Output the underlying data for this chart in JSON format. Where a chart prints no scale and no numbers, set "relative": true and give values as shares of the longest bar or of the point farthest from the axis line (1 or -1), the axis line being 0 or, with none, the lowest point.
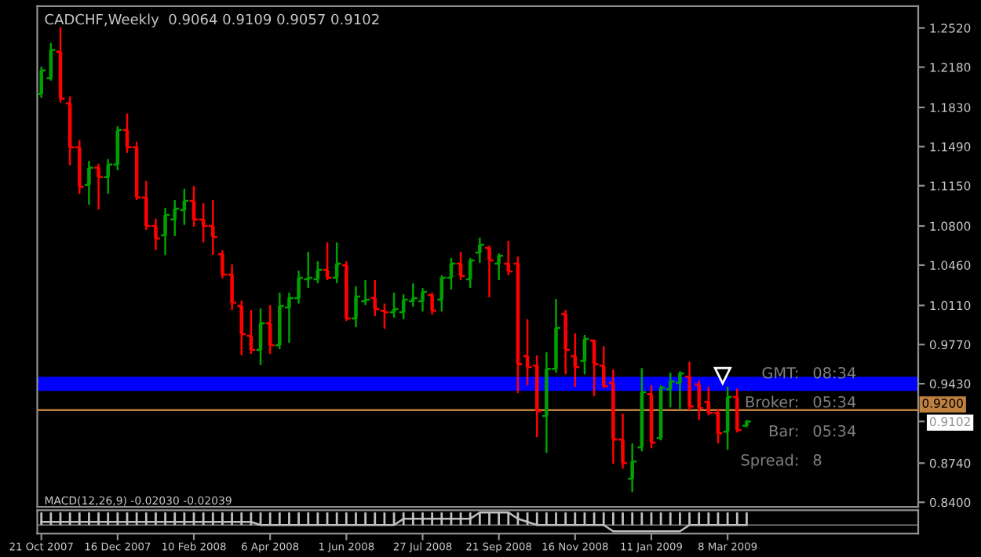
{
  "chart_data": [
    {
      "type": "candlestick",
      "title": "CADCHF,Weekly  0.9064 0.9109 0.9057 0.9102",
      "x": [
        "2007-10-21",
        "2007-10-28",
        "2007-11-04",
        "2007-11-11",
        "2007-11-18",
        "2007-11-25",
        "2007-12-02",
        "2007-12-09",
        "2007-12-16",
        "2007-12-23",
        "2007-12-30",
        "2008-01-06",
        "2008-01-13",
        "2008-01-20",
        "2008-01-27",
        "2008-02-03",
        "2008-02-10",
        "2008-02-17",
        "2008-02-24",
        "2008-03-02",
        "2008-03-09",
        "2008-03-16",
        "2008-03-23",
        "2008-03-30",
        "2008-04-06",
        "2008-04-13",
        "2008-04-20",
        "2008-04-27",
        "2008-05-04",
        "2008-05-11",
        "2008-05-18",
        "2008-05-25",
        "2008-06-01",
        "2008-06-08",
        "2008-06-15",
        "2008-06-22",
        "2008-06-29",
        "2008-07-06",
        "2008-07-13",
        "2008-07-20",
        "2008-07-27",
        "2008-08-03",
        "2008-08-10",
        "2008-08-17",
        "2008-08-24",
        "2008-08-31",
        "2008-09-07",
        "2008-09-14",
        "2008-09-21",
        "2008-09-28",
        "2008-10-05",
        "2008-10-12",
        "2008-10-19",
        "2008-10-26",
        "2008-11-02",
        "2008-11-09",
        "2008-11-16",
        "2008-11-23",
        "2008-11-30",
        "2008-12-07",
        "2008-12-14",
        "2008-12-21",
        "2008-12-28",
        "2009-01-04",
        "2009-01-11",
        "2009-01-18",
        "2009-01-25",
        "2009-02-01",
        "2009-02-08",
        "2009-02-15",
        "2009-02-22",
        "2009-03-01",
        "2009-03-08",
        "2009-03-15",
        "2009-03-22"
      ],
      "ohlc": [
        [
          1.1947,
          1.2179,
          1.192,
          1.2152
        ],
        [
          1.2083,
          1.2384,
          1.207,
          1.2329
        ],
        [
          1.2315,
          1.252,
          1.1879,
          1.1906
        ],
        [
          1.1865,
          1.192,
          1.1333,
          1.1483
        ],
        [
          1.1483,
          1.1538,
          1.1087,
          1.1142
        ],
        [
          1.1156,
          1.136,
          1.0992,
          1.1306
        ],
        [
          1.1306,
          1.1333,
          1.0951,
          1.1224
        ],
        [
          1.1224,
          1.1374,
          1.1087,
          1.1333
        ],
        [
          1.1333,
          1.166,
          1.1292,
          1.1633
        ],
        [
          1.1633,
          1.177,
          1.1442,
          1.1483
        ],
        [
          1.1483,
          1.1524,
          1.1033,
          1.1047
        ],
        [
          1.1047,
          1.1183,
          1.0774,
          1.0801
        ],
        [
          1.0801,
          1.0856,
          1.0596,
          1.0692
        ],
        [
          1.0719,
          1.0951,
          1.0555,
          1.0896
        ],
        [
          1.0856,
          1.1019,
          1.0719,
          1.0951
        ],
        [
          1.0937,
          1.1115,
          1.0815,
          1.1019
        ],
        [
          1.1019,
          1.1142,
          1.0801,
          1.0856
        ],
        [
          1.0856,
          1.0992,
          1.0665,
          1.0801
        ],
        [
          1.0801,
          1.1019,
          1.0555,
          1.0705
        ],
        [
          1.0555,
          1.0583,
          1.0351,
          1.0378
        ],
        [
          1.0378,
          1.046,
          1.0078,
          1.0132
        ],
        [
          1.0105,
          1.0146,
          0.9682,
          0.986
        ],
        [
          0.9846,
          1.0064,
          0.9696,
          0.9723
        ],
        [
          0.9723,
          1.0078,
          0.96,
          0.9955
        ],
        [
          0.9955,
          1.0105,
          0.9696,
          0.9764
        ],
        [
          0.9764,
          1.0214,
          0.9737,
          1.0105
        ],
        [
          1.0092,
          1.0214,
          0.9791,
          1.0173
        ],
        [
          1.0173,
          1.0405,
          1.0132,
          1.0351
        ],
        [
          1.0337,
          1.0569,
          1.0269,
          1.0351
        ],
        [
          1.0337,
          1.0487,
          1.031,
          1.0419
        ],
        [
          1.0419,
          1.0651,
          1.0337,
          1.0351
        ],
        [
          1.0351,
          1.0651,
          1.031,
          1.0474
        ],
        [
          1.046,
          1.0487,
          0.9982,
          0.9996
        ],
        [
          0.9996,
          1.0269,
          0.9928,
          1.0187
        ],
        [
          1.0146,
          1.0323,
          1.0119,
          1.016
        ],
        [
          1.0173,
          1.0323,
          1.0023,
          1.0078
        ],
        [
          1.0064,
          1.0119,
          0.9914,
          1.0051
        ],
        [
          1.0051,
          1.0214,
          1.001,
          1.0078
        ],
        [
          1.0051,
          1.0201,
          0.9996,
          1.016
        ],
        [
          1.0146,
          1.0296,
          1.0105,
          1.0173
        ],
        [
          1.0146,
          1.0255,
          1.0064,
          1.0228
        ],
        [
          1.0201,
          1.0214,
          1.0037,
          1.0064
        ],
        [
          1.016,
          1.0364,
          1.0064,
          1.0351
        ],
        [
          1.0351,
          1.0514,
          1.0255,
          1.0474
        ],
        [
          1.0474,
          1.0569,
          1.0337,
          1.0364
        ],
        [
          1.0337,
          1.0514,
          1.0269,
          1.0501
        ],
        [
          1.0569,
          1.0692,
          1.0487,
          1.0637
        ],
        [
          1.061,
          1.0624,
          1.0187,
          1.0501
        ],
        [
          1.0474,
          1.0555,
          1.0337,
          1.0542
        ],
        [
          1.0474,
          1.0665,
          1.0378,
          1.0405
        ],
        [
          1.0474,
          1.0528,
          0.9355,
          0.96
        ],
        [
          0.9669,
          0.9982,
          0.9423,
          0.9573
        ],
        [
          0.9587,
          0.9669,
          0.8973,
          0.9191
        ],
        [
          0.915,
          0.9696,
          0.8836,
          0.9559
        ],
        [
          0.9559,
          1.016,
          0.9532,
          0.9914
        ],
        [
          1.0037,
          1.0064,
          0.9519,
          0.9723
        ],
        [
          0.9669,
          0.986,
          0.9409,
          0.9573
        ],
        [
          0.9628,
          0.9846,
          0.9519,
          0.9819
        ],
        [
          0.9805,
          0.9805,
          0.9328,
          0.96
        ],
        [
          0.9587,
          0.975,
          0.9396,
          0.9409
        ],
        [
          0.9437,
          0.9546,
          0.8741,
          0.8945
        ],
        [
          0.8945,
          0.9164,
          0.87,
          0.8741
        ],
        [
          0.8604,
          0.8905,
          0.8495,
          0.8755
        ],
        [
          0.8877,
          0.9559,
          0.885,
          0.9355
        ],
        [
          0.9341,
          0.9409,
          0.8877,
          0.8918
        ],
        [
          0.8959,
          0.9409,
          0.8945,
          0.9396
        ],
        [
          0.9382,
          0.9519,
          0.9232,
          0.945
        ],
        [
          0.9437,
          0.9532,
          0.9218,
          0.9519
        ],
        [
          0.9491,
          0.9614,
          0.9205,
          0.9232
        ],
        [
          0.9423,
          0.945,
          0.9123,
          0.9218
        ],
        [
          0.9273,
          0.9396,
          0.9164,
          0.9177
        ],
        [
          0.9177,
          0.9205,
          0.8918,
          0.9
        ],
        [
          0.9014,
          0.9396,
          0.8864,
          0.9314
        ],
        [
          0.9314,
          0.9382,
          0.9014,
          0.9027
        ],
        [
          0.9064,
          0.9109,
          0.9057,
          0.9102
        ]
      ],
      "colors": [
        "#00a000",
        "#00a000",
        "#ff0000",
        "#ff0000",
        "#ff0000",
        "#00a000",
        "#ff0000",
        "#00a000",
        "#00a000",
        "#ff0000",
        "#ff0000",
        "#ff0000",
        "#ff0000",
        "#00a000",
        "#00a000",
        "#00a000",
        "#ff0000",
        "#ff0000",
        "#ff0000",
        "#ff0000",
        "#ff0000",
        "#ff0000",
        "#ff0000",
        "#00a000",
        "#ff0000",
        "#00a000",
        "#00a000",
        "#00a000",
        "#00a000",
        "#00a000",
        "#ff0000",
        "#00a000",
        "#ff0000",
        "#00a000",
        "#00a000",
        "#ff0000",
        "#ff0000",
        "#00a000",
        "#00a000",
        "#00a000",
        "#00a000",
        "#ff0000",
        "#00a000",
        "#00a000",
        "#ff0000",
        "#00a000",
        "#00a000",
        "#ff0000",
        "#00a000",
        "#ff0000",
        "#ff0000",
        "#ff0000",
        "#ff0000",
        "#00a000",
        "#00a000",
        "#ff0000",
        "#ff0000",
        "#00a000",
        "#ff0000",
        "#ff0000",
        "#ff0000",
        "#ff0000",
        "#00a000",
        "#00a000",
        "#ff0000",
        "#00a000",
        "#00a000",
        "#00a000",
        "#ff0000",
        "#ff0000",
        "#ff0000",
        "#ff0000",
        "#00a000",
        "#ff0000",
        "#00a000"
      ],
      "xlim": [
        "2007-10-18",
        "2009-07-26"
      ],
      "ylim": [
        0.836,
        1.271
      ],
      "yticks": [
        {
          "value": 1.252,
          "label": "1.2520"
        },
        {
          "value": 1.218,
          "label": "1.2180"
        },
        {
          "value": 1.183,
          "label": "1.1830"
        },
        {
          "value": 1.149,
          "label": "1.1490"
        },
        {
          "value": 1.115,
          "label": "1.1150"
        },
        {
          "value": 1.08,
          "label": "1.0800"
        },
        {
          "value": 1.046,
          "label": "1.0460"
        },
        {
          "value": 1.011,
          "label": "1.0110"
        },
        {
          "value": 0.977,
          "label": "0.9770"
        },
        {
          "value": 0.943,
          "label": "0.9430"
        },
        {
          "value": 0.9102,
          "label": "0.9102"
        },
        {
          "value": 0.874,
          "label": "0.8740"
        },
        {
          "value": 0.84,
          "label": "0.8400"
        }
      ],
      "tick_labels": "y",
      "ref_lines": [
        {
          "axis": "y",
          "value": 0.92,
          "label": "0.9200",
          "color": "#c08040"
        }
      ],
      "bands": [
        {
          "axis": "y",
          "from": 0.9368,
          "to": 0.9491,
          "color": "#0000ff"
        }
      ],
      "annotations": [
        "GMT: 08:34",
        "Broker: 05:34",
        "Bar: 05:34",
        "Spread: 8"
      ]
    },
    {
      "type": "bar",
      "title": "MACD(12,26,9) -0.02030 -0.02039",
      "relative": true,
      "x": [
        "2007-10-21",
        "2007-10-28",
        "2007-11-04",
        "2007-11-11",
        "2007-11-18",
        "2007-11-25",
        "2007-12-02",
        "2007-12-09",
        "2007-12-16",
        "2007-12-23",
        "2007-12-30",
        "2008-01-06",
        "2008-01-13",
        "2008-01-20",
        "2008-01-27",
        "2008-02-03",
        "2008-02-10",
        "2008-02-17",
        "2008-02-24",
        "2008-03-02",
        "2008-03-09",
        "2008-03-16",
        "2008-03-23",
        "2008-03-30",
        "2008-04-06",
        "2008-04-13",
        "2008-04-20",
        "2008-04-27",
        "2008-05-04",
        "2008-05-11",
        "2008-05-18",
        "2008-05-25",
        "2008-06-01",
        "2008-06-08",
        "2008-06-15",
        "2008-06-22",
        "2008-06-29",
        "2008-07-06",
        "2008-07-13",
        "2008-07-20",
        "2008-07-27",
        "2008-08-03",
        "2008-08-10",
        "2008-08-17",
        "2008-08-24",
        "2008-08-31",
        "2008-09-07",
        "2008-09-14",
        "2008-09-21",
        "2008-09-28",
        "2008-10-05",
        "2008-10-12",
        "2008-10-19",
        "2008-10-26",
        "2008-11-02",
        "2008-11-09",
        "2008-11-16",
        "2008-11-23",
        "2008-11-30",
        "2008-12-07",
        "2008-12-14",
        "2008-12-21",
        "2008-12-28",
        "2009-01-04",
        "2009-01-11",
        "2009-01-18",
        "2009-01-25",
        "2009-02-01",
        "2009-02-08",
        "2009-02-15",
        "2009-02-22",
        "2009-03-01",
        "2009-03-08",
        "2009-03-15",
        "2009-03-22"
      ],
      "series": [
        {
          "type": "bar",
          "color": "#c0c0c0",
          "values": [
            1,
            1,
            1,
            1,
            1,
            1,
            1,
            1,
            1,
            1,
            1,
            1,
            1,
            1,
            1,
            1,
            1,
            1,
            1,
            1,
            1,
            1,
            1,
            1,
            1,
            1,
            1,
            1,
            1,
            1,
            1,
            1,
            1,
            1,
            1,
            1,
            1,
            1,
            1,
            1,
            1,
            1,
            1,
            1,
            1,
            1,
            1,
            1,
            1,
            1,
            1,
            1,
            1,
            1,
            1,
            1,
            1,
            1,
            1,
            1,
            1,
            1,
            1,
            1,
            1,
            1,
            1,
            1,
            1,
            1,
            1,
            1,
            1,
            1,
            1
          ]
        },
        {
          "type": "line",
          "color": "#c0c0c0",
          "values": [
            0.25,
            0.25,
            0.25,
            0.25,
            0.25,
            0.25,
            0.25,
            0.25,
            0.25,
            0.25,
            0.25,
            0.25,
            0.25,
            0.25,
            0.25,
            0.25,
            0.25,
            0.25,
            0.25,
            0.25,
            0.25,
            0.25,
            0.25,
            0,
            0,
            0,
            0,
            0,
            0,
            0,
            0,
            0,
            0,
            0,
            0,
            0,
            0,
            0,
            0.5,
            0.5,
            0.5,
            0.5,
            0.5,
            0.5,
            0.5,
            0.5,
            1,
            1,
            1,
            1,
            0.5,
            0.25,
            0,
            0,
            0,
            0,
            0,
            0,
            0,
            0,
            -0.5,
            -0.5,
            -0.5,
            -0.5,
            -0.5,
            -0.5,
            -0.5,
            -0.5,
            0,
            0,
            0,
            0,
            0,
            0,
            0
          ]
        }
      ],
      "xlim": [
        "2007-10-18",
        "2009-07-26"
      ],
      "xticks": [
        {
          "value": "2007-10-21",
          "label": "21 Oct 2007"
        },
        {
          "value": "2007-12-16",
          "label": "16 Dec 2007"
        },
        {
          "value": "2008-02-10",
          "label": "10 Feb 2008"
        },
        {
          "value": "2008-04-06",
          "label": "6 Apr 2008"
        },
        {
          "value": "2008-06-01",
          "label": "1 Jun 2008"
        },
        {
          "value": "2008-07-27",
          "label": "27 Jul 2008"
        },
        {
          "value": "2008-09-21",
          "label": "21 Sep 2008"
        },
        {
          "value": "2008-11-16",
          "label": "16 Nov 2008"
        },
        {
          "value": "2009-01-11",
          "label": "11 Jan 2009"
        },
        {
          "value": "2009-03-08",
          "label": "8 Mar 2009"
        }
      ],
      "tick_labels": "x"
    }
  ]
}
